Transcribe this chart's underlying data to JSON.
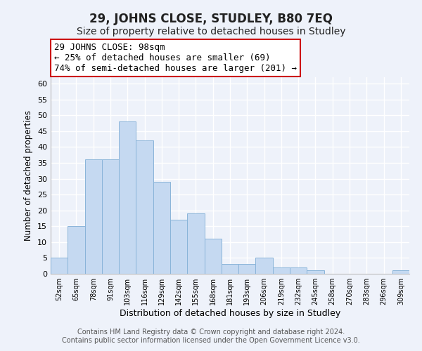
{
  "title": "29, JOHNS CLOSE, STUDLEY, B80 7EQ",
  "subtitle": "Size of property relative to detached houses in Studley",
  "xlabel": "Distribution of detached houses by size in Studley",
  "ylabel": "Number of detached properties",
  "categories": [
    "52sqm",
    "65sqm",
    "78sqm",
    "91sqm",
    "103sqm",
    "116sqm",
    "129sqm",
    "142sqm",
    "155sqm",
    "168sqm",
    "181sqm",
    "193sqm",
    "206sqm",
    "219sqm",
    "232sqm",
    "245sqm",
    "258sqm",
    "270sqm",
    "283sqm",
    "296sqm",
    "309sqm"
  ],
  "values": [
    5,
    15,
    36,
    36,
    48,
    42,
    29,
    17,
    19,
    11,
    3,
    3,
    5,
    2,
    2,
    1,
    0,
    0,
    0,
    0,
    1
  ],
  "bar_color": "#c5d9f1",
  "bar_edge_color": "#8ab4d9",
  "ylim": [
    0,
    62
  ],
  "yticks": [
    0,
    5,
    10,
    15,
    20,
    25,
    30,
    35,
    40,
    45,
    50,
    55,
    60
  ],
  "annotation_line1": "29 JOHNS CLOSE: 98sqm",
  "annotation_line2": "← 25% of detached houses are smaller (69)",
  "annotation_line3": "74% of semi-detached houses are larger (201) →",
  "annotation_box_color": "#ffffff",
  "annotation_box_edge_color": "#cc0000",
  "footer_line1": "Contains HM Land Registry data © Crown copyright and database right 2024.",
  "footer_line2": "Contains public sector information licensed under the Open Government Licence v3.0.",
  "background_color": "#eef2fa",
  "grid_color": "#ffffff",
  "title_fontsize": 12,
  "subtitle_fontsize": 10,
  "annotation_fontsize": 9,
  "footer_fontsize": 7,
  "ylabel_fontsize": 8.5,
  "xlabel_fontsize": 9,
  "ytick_fontsize": 8,
  "xtick_fontsize": 7
}
